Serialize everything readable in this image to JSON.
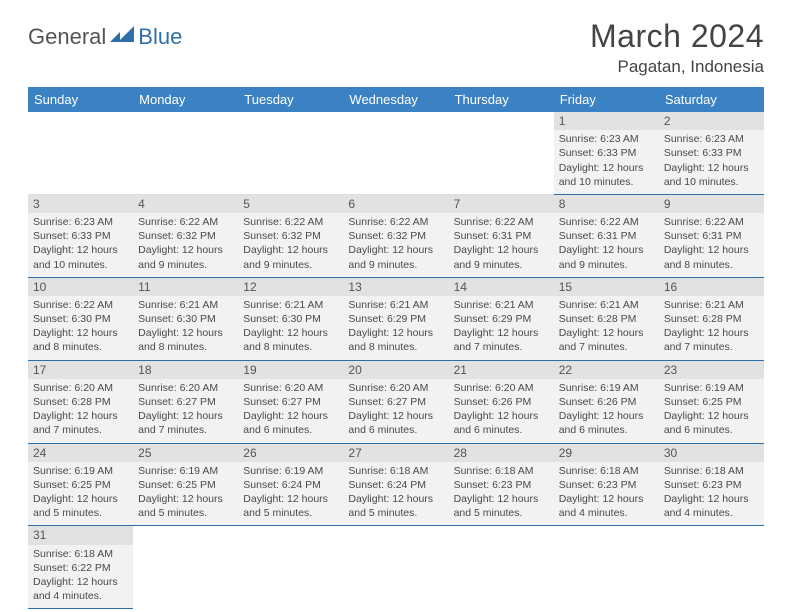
{
  "logo": {
    "part1": "General",
    "part2": "Blue"
  },
  "title": "March 2024",
  "location": "Pagatan, Indonesia",
  "colors": {
    "header_bg": "#3b82c4",
    "header_fg": "#ffffff",
    "row_divider": "#2f6fa8",
    "cell_bg": "#f2f2f2",
    "daynum_bg": "#e2e2e2",
    "logo_accent": "#2f6fa8"
  },
  "weekdays": [
    "Sunday",
    "Monday",
    "Tuesday",
    "Wednesday",
    "Thursday",
    "Friday",
    "Saturday"
  ],
  "weeks": [
    [
      null,
      null,
      null,
      null,
      null,
      {
        "n": "1",
        "sr": "Sunrise: 6:23 AM",
        "ss": "Sunset: 6:33 PM",
        "d1": "Daylight: 12 hours",
        "d2": "and 10 minutes."
      },
      {
        "n": "2",
        "sr": "Sunrise: 6:23 AM",
        "ss": "Sunset: 6:33 PM",
        "d1": "Daylight: 12 hours",
        "d2": "and 10 minutes."
      }
    ],
    [
      {
        "n": "3",
        "sr": "Sunrise: 6:23 AM",
        "ss": "Sunset: 6:33 PM",
        "d1": "Daylight: 12 hours",
        "d2": "and 10 minutes."
      },
      {
        "n": "4",
        "sr": "Sunrise: 6:22 AM",
        "ss": "Sunset: 6:32 PM",
        "d1": "Daylight: 12 hours",
        "d2": "and 9 minutes."
      },
      {
        "n": "5",
        "sr": "Sunrise: 6:22 AM",
        "ss": "Sunset: 6:32 PM",
        "d1": "Daylight: 12 hours",
        "d2": "and 9 minutes."
      },
      {
        "n": "6",
        "sr": "Sunrise: 6:22 AM",
        "ss": "Sunset: 6:32 PM",
        "d1": "Daylight: 12 hours",
        "d2": "and 9 minutes."
      },
      {
        "n": "7",
        "sr": "Sunrise: 6:22 AM",
        "ss": "Sunset: 6:31 PM",
        "d1": "Daylight: 12 hours",
        "d2": "and 9 minutes."
      },
      {
        "n": "8",
        "sr": "Sunrise: 6:22 AM",
        "ss": "Sunset: 6:31 PM",
        "d1": "Daylight: 12 hours",
        "d2": "and 9 minutes."
      },
      {
        "n": "9",
        "sr": "Sunrise: 6:22 AM",
        "ss": "Sunset: 6:31 PM",
        "d1": "Daylight: 12 hours",
        "d2": "and 8 minutes."
      }
    ],
    [
      {
        "n": "10",
        "sr": "Sunrise: 6:22 AM",
        "ss": "Sunset: 6:30 PM",
        "d1": "Daylight: 12 hours",
        "d2": "and 8 minutes."
      },
      {
        "n": "11",
        "sr": "Sunrise: 6:21 AM",
        "ss": "Sunset: 6:30 PM",
        "d1": "Daylight: 12 hours",
        "d2": "and 8 minutes."
      },
      {
        "n": "12",
        "sr": "Sunrise: 6:21 AM",
        "ss": "Sunset: 6:30 PM",
        "d1": "Daylight: 12 hours",
        "d2": "and 8 minutes."
      },
      {
        "n": "13",
        "sr": "Sunrise: 6:21 AM",
        "ss": "Sunset: 6:29 PM",
        "d1": "Daylight: 12 hours",
        "d2": "and 8 minutes."
      },
      {
        "n": "14",
        "sr": "Sunrise: 6:21 AM",
        "ss": "Sunset: 6:29 PM",
        "d1": "Daylight: 12 hours",
        "d2": "and 7 minutes."
      },
      {
        "n": "15",
        "sr": "Sunrise: 6:21 AM",
        "ss": "Sunset: 6:28 PM",
        "d1": "Daylight: 12 hours",
        "d2": "and 7 minutes."
      },
      {
        "n": "16",
        "sr": "Sunrise: 6:21 AM",
        "ss": "Sunset: 6:28 PM",
        "d1": "Daylight: 12 hours",
        "d2": "and 7 minutes."
      }
    ],
    [
      {
        "n": "17",
        "sr": "Sunrise: 6:20 AM",
        "ss": "Sunset: 6:28 PM",
        "d1": "Daylight: 12 hours",
        "d2": "and 7 minutes."
      },
      {
        "n": "18",
        "sr": "Sunrise: 6:20 AM",
        "ss": "Sunset: 6:27 PM",
        "d1": "Daylight: 12 hours",
        "d2": "and 7 minutes."
      },
      {
        "n": "19",
        "sr": "Sunrise: 6:20 AM",
        "ss": "Sunset: 6:27 PM",
        "d1": "Daylight: 12 hours",
        "d2": "and 6 minutes."
      },
      {
        "n": "20",
        "sr": "Sunrise: 6:20 AM",
        "ss": "Sunset: 6:27 PM",
        "d1": "Daylight: 12 hours",
        "d2": "and 6 minutes."
      },
      {
        "n": "21",
        "sr": "Sunrise: 6:20 AM",
        "ss": "Sunset: 6:26 PM",
        "d1": "Daylight: 12 hours",
        "d2": "and 6 minutes."
      },
      {
        "n": "22",
        "sr": "Sunrise: 6:19 AM",
        "ss": "Sunset: 6:26 PM",
        "d1": "Daylight: 12 hours",
        "d2": "and 6 minutes."
      },
      {
        "n": "23",
        "sr": "Sunrise: 6:19 AM",
        "ss": "Sunset: 6:25 PM",
        "d1": "Daylight: 12 hours",
        "d2": "and 6 minutes."
      }
    ],
    [
      {
        "n": "24",
        "sr": "Sunrise: 6:19 AM",
        "ss": "Sunset: 6:25 PM",
        "d1": "Daylight: 12 hours",
        "d2": "and 5 minutes."
      },
      {
        "n": "25",
        "sr": "Sunrise: 6:19 AM",
        "ss": "Sunset: 6:25 PM",
        "d1": "Daylight: 12 hours",
        "d2": "and 5 minutes."
      },
      {
        "n": "26",
        "sr": "Sunrise: 6:19 AM",
        "ss": "Sunset: 6:24 PM",
        "d1": "Daylight: 12 hours",
        "d2": "and 5 minutes."
      },
      {
        "n": "27",
        "sr": "Sunrise: 6:18 AM",
        "ss": "Sunset: 6:24 PM",
        "d1": "Daylight: 12 hours",
        "d2": "and 5 minutes."
      },
      {
        "n": "28",
        "sr": "Sunrise: 6:18 AM",
        "ss": "Sunset: 6:23 PM",
        "d1": "Daylight: 12 hours",
        "d2": "and 5 minutes."
      },
      {
        "n": "29",
        "sr": "Sunrise: 6:18 AM",
        "ss": "Sunset: 6:23 PM",
        "d1": "Daylight: 12 hours",
        "d2": "and 4 minutes."
      },
      {
        "n": "30",
        "sr": "Sunrise: 6:18 AM",
        "ss": "Sunset: 6:23 PM",
        "d1": "Daylight: 12 hours",
        "d2": "and 4 minutes."
      }
    ],
    [
      {
        "n": "31",
        "sr": "Sunrise: 6:18 AM",
        "ss": "Sunset: 6:22 PM",
        "d1": "Daylight: 12 hours",
        "d2": "and 4 minutes."
      },
      null,
      null,
      null,
      null,
      null,
      null
    ]
  ]
}
